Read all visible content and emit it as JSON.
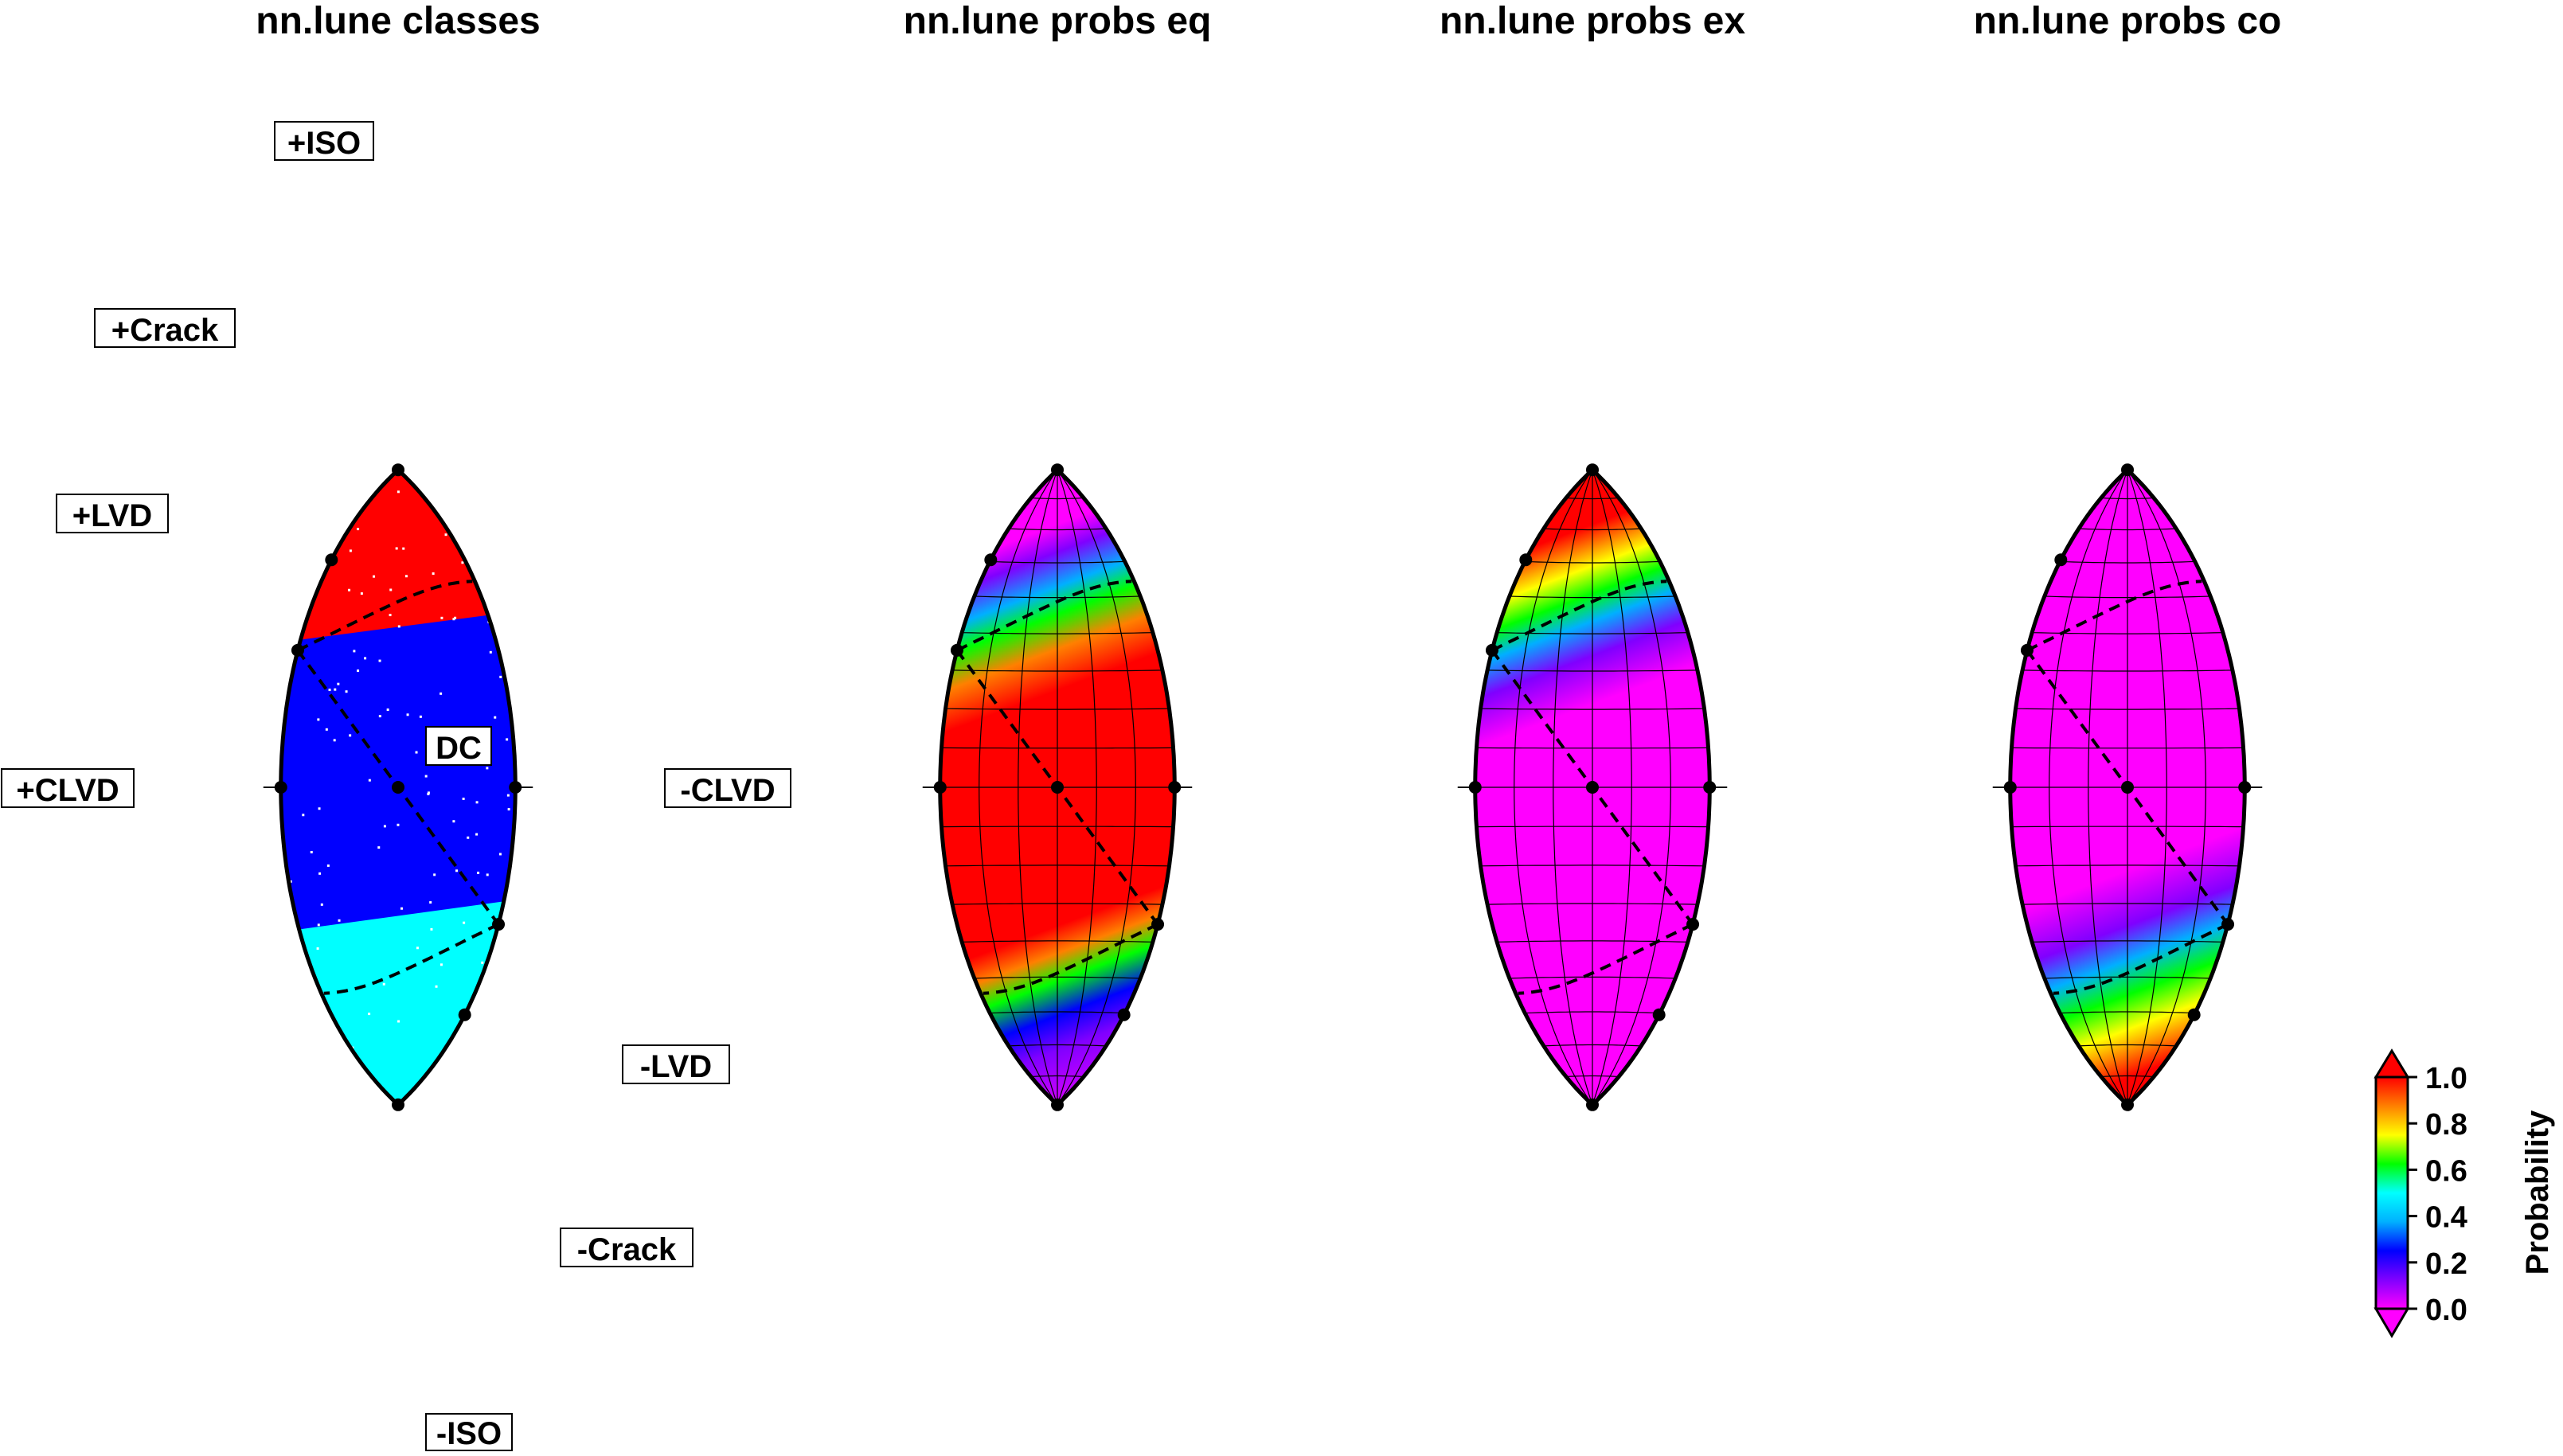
{
  "panels": [
    {
      "id": "classes",
      "title": "nn.lune classes",
      "kind": "classes"
    },
    {
      "id": "eq",
      "title": "nn.lune probs eq",
      "kind": "prob",
      "peak": "eq"
    },
    {
      "id": "ex",
      "title": "nn.lune probs ex",
      "kind": "prob",
      "peak": "ex"
    },
    {
      "id": "co",
      "title": "nn.lune probs co",
      "kind": "prob",
      "peak": "co"
    }
  ],
  "lune_labels": {
    "plus_iso": "+ISO",
    "plus_crack": "+Crack",
    "plus_lvd": "+LVD",
    "plus_clvd": "+CLVD",
    "dc": "DC",
    "minus_clvd": "-CLVD",
    "minus_lvd": "-LVD",
    "minus_crack": "-Crack",
    "minus_iso": "-ISO"
  },
  "class_colors": {
    "ex": "#ff0000",
    "eq": "#0000ff",
    "co": "#00ffff"
  },
  "colorbar": {
    "label": "Probability",
    "ticks": [
      "0.0",
      "0.2",
      "0.4",
      "0.6",
      "0.8",
      "1.0"
    ],
    "range": [
      0,
      1
    ],
    "colormap": [
      "#ff00ff",
      "#8000ff",
      "#0000ff",
      "#00b0ff",
      "#00ffff",
      "#00ff00",
      "#ffff00",
      "#ff8000",
      "#ff0000"
    ]
  }
}
